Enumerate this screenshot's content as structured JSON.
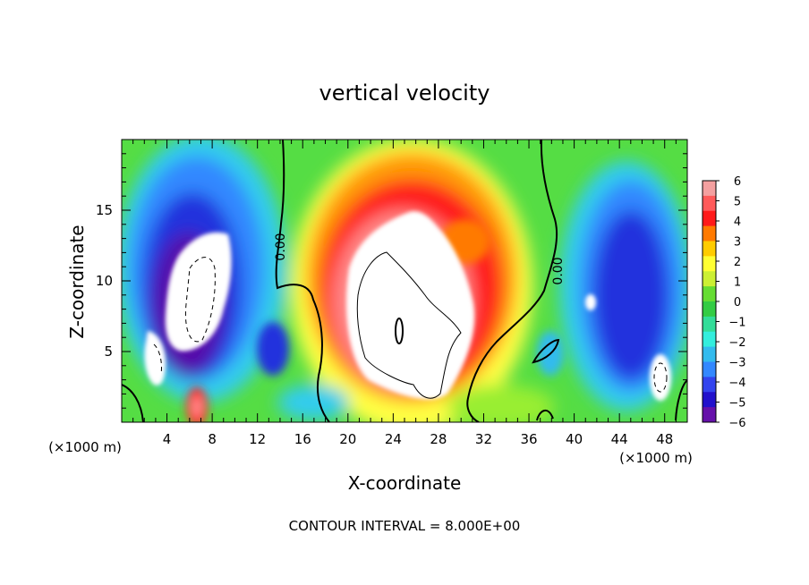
{
  "chart_data": {
    "type": "heatmap",
    "title": "vertical velocity",
    "xlabel": "X-coordinate",
    "ylabel": "Z-coordinate",
    "x_unit": "(×1000 m)",
    "x_unit_right": "(×1000 m)",
    "xlim": [
      0,
      50
    ],
    "ylim": [
      0,
      20
    ],
    "x_ticks": [
      4,
      8,
      12,
      16,
      20,
      24,
      28,
      32,
      36,
      40,
      44,
      48
    ],
    "y_ticks": [
      5,
      10,
      15
    ],
    "contour_interval_text": "CONTOUR INTERVAL = 8.000E+00",
    "contour_labels": [
      "0.00",
      "0.00"
    ],
    "colorbar_ticks": [
      6,
      5,
      4,
      3,
      2,
      1,
      0,
      -1,
      -2,
      -3,
      -4,
      -5,
      -6
    ],
    "colorbar_colors": [
      "#f4a0a0",
      "#ff5a5a",
      "#ff1a1a",
      "#ff7a00",
      "#ffcc00",
      "#ffff33",
      "#ccf033",
      "#66dd33",
      "#33cc44",
      "#33dd99",
      "#33eedd",
      "#33bbee",
      "#3388ff",
      "#3344ee",
      "#2211cc",
      "#6611aa"
    ]
  }
}
